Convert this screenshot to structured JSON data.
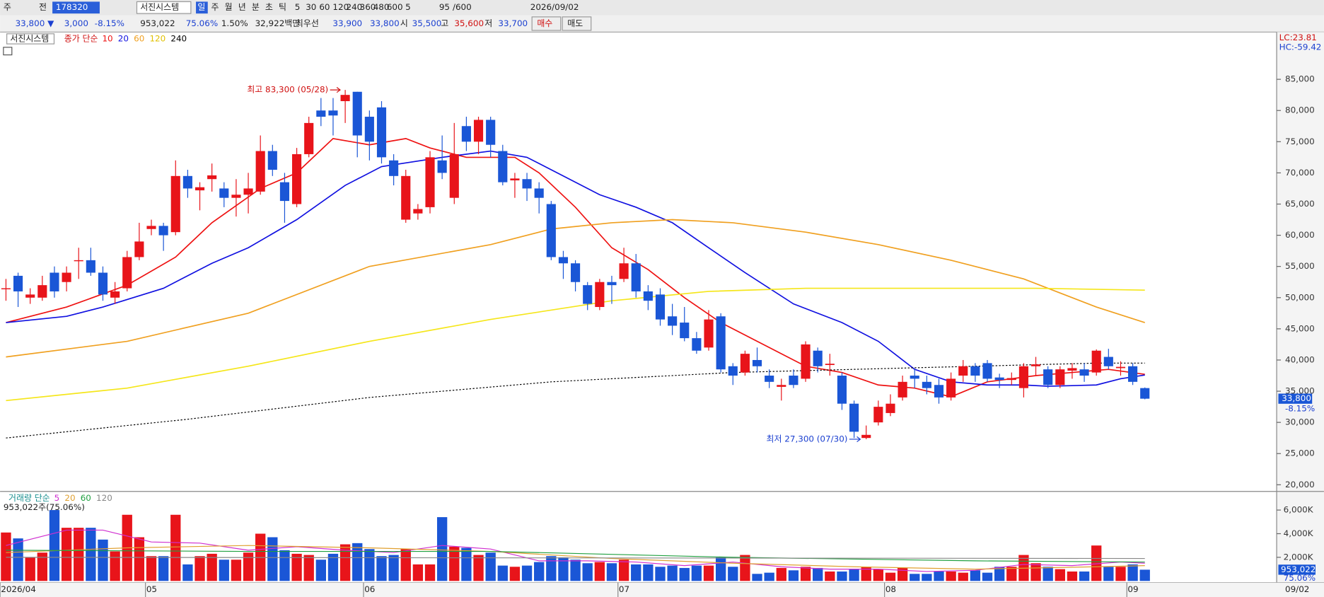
{
  "toolbar": {
    "row1": [
      "주",
      "전",
      "178320",
      "서진시스템",
      "일",
      "주",
      "월",
      "년",
      "분",
      "초",
      "틱",
      "5",
      "30",
      "60",
      "120",
      "240",
      "360",
      "480",
      "600",
      "5",
      "95",
      "/600",
      "2026/09/02"
    ],
    "row2": [
      "33,800 ▼",
      "3,000",
      "-8.15%",
      "953,022",
      "75.06%",
      "1.50%",
      "32,922백만",
      "최우선",
      "33,900",
      "33,800",
      "시",
      "35,500",
      "고",
      "35,600",
      "저",
      "33,700",
      "매수",
      "매도"
    ]
  },
  "chart_data": [
    {
      "type": "candlestick",
      "legend_title": "서진시스템",
      "ma_label": "종가 단순",
      "lc_label": "LC:23.81",
      "hc_label": "HC:-59.42",
      "max_label": "최고 83,300 (05/28)",
      "min_label": "최저 27,300 (07/30)",
      "last_label": "33,800",
      "last_change": "-8.15%",
      "date_label": "09/02",
      "categories": [
        "2026/04",
        null,
        null,
        null,
        null,
        null,
        null,
        null,
        null,
        null,
        null,
        null,
        "05",
        null,
        null,
        null,
        null,
        null,
        null,
        null,
        null,
        null,
        null,
        null,
        null,
        null,
        null,
        null,
        null,
        null,
        "06",
        null,
        null,
        null,
        null,
        null,
        null,
        null,
        null,
        null,
        null,
        null,
        null,
        null,
        null,
        null,
        null,
        null,
        null,
        null,
        null,
        "07",
        null,
        null,
        null,
        null,
        null,
        null,
        null,
        null,
        null,
        null,
        null,
        null,
        null,
        null,
        null,
        null,
        null,
        null,
        null,
        null,
        null,
        "08",
        null,
        null,
        null,
        null,
        null,
        null,
        null,
        null,
        null,
        null,
        null,
        null,
        null,
        null,
        null,
        null,
        null,
        null,
        null,
        "09",
        null
      ],
      "open": [
        51500,
        53500,
        50000,
        50000,
        54000,
        52500,
        56000,
        56000,
        54000,
        50000,
        51500,
        56500,
        61000,
        61500,
        60500,
        69500,
        67200,
        69000,
        67500,
        66000,
        66500,
        67000,
        73500,
        68500,
        65000,
        73000,
        80000,
        80000,
        81500,
        83000,
        79000,
        80500,
        72000,
        62500,
        63500,
        64500,
        72000,
        66000,
        77500,
        75000,
        78500,
        73500,
        68800,
        69000,
        67500,
        65000,
        56500,
        55500,
        52000,
        48500,
        52500,
        53000,
        55500,
        51000,
        50500,
        47000,
        46000,
        43500,
        42000,
        47000,
        39000,
        38000,
        40000,
        37500,
        35700,
        37500,
        37000,
        41500,
        39200,
        37500,
        33000,
        27500,
        30000,
        31500,
        34000,
        37500,
        36500,
        36000,
        34000,
        37500,
        39000,
        39500,
        37200,
        36800,
        35500,
        39000,
        38500,
        36000,
        38300,
        38500,
        38000,
        40500,
        38700,
        39000,
        35500
      ],
      "high": [
        53000,
        54000,
        51500,
        53500,
        55000,
        55000,
        58000,
        58000,
        55000,
        52500,
        57500,
        62000,
        62500,
        62000,
        72000,
        70500,
        68500,
        71500,
        68500,
        69000,
        70000,
        76000,
        74500,
        70000,
        74000,
        79000,
        82000,
        82000,
        83300,
        83000,
        80000,
        81500,
        73000,
        70500,
        65000,
        73500,
        76000,
        78000,
        79000,
        79000,
        79000,
        74500,
        70000,
        70000,
        68500,
        65500,
        57500,
        56000,
        52500,
        53000,
        53500,
        58000,
        57000,
        52000,
        51500,
        49000,
        48500,
        44500,
        48000,
        47500,
        39500,
        41500,
        42000,
        38500,
        37000,
        38500,
        43000,
        42000,
        41000,
        38000,
        33500,
        29500,
        33500,
        34500,
        37500,
        38500,
        37500,
        37000,
        38000,
        40000,
        39500,
        40000,
        37800,
        38000,
        39500,
        40500,
        39000,
        39000,
        39500,
        39500,
        41700,
        41800,
        39800,
        39500,
        35600
      ],
      "low": [
        49500,
        48500,
        49000,
        49500,
        50000,
        51000,
        53000,
        53500,
        49500,
        49000,
        51000,
        56000,
        60000,
        57500,
        60000,
        66000,
        64000,
        67000,
        64500,
        63000,
        63500,
        66500,
        69500,
        62000,
        64500,
        72500,
        77500,
        76000,
        78000,
        72500,
        72000,
        71500,
        68000,
        62000,
        62500,
        63500,
        69000,
        65000,
        73500,
        73000,
        72500,
        68000,
        66000,
        65500,
        63500,
        56000,
        53000,
        51000,
        48000,
        48000,
        49000,
        52500,
        50000,
        48000,
        45500,
        44000,
        43000,
        41000,
        41500,
        38000,
        36000,
        37500,
        38000,
        35500,
        33500,
        35500,
        36500,
        38000,
        37500,
        32000,
        27500,
        27300,
        29500,
        31000,
        33500,
        35500,
        34500,
        33000,
        33500,
        36500,
        36500,
        36500,
        35500,
        36000,
        34000,
        37500,
        35500,
        35500,
        37000,
        36500,
        37500,
        38500,
        37500,
        36000,
        33700
      ],
      "close": [
        51500,
        51000,
        50500,
        52000,
        51000,
        54000,
        56000,
        54000,
        50500,
        51000,
        56500,
        59000,
        61500,
        60000,
        69500,
        67500,
        67700,
        69600,
        66000,
        66500,
        67500,
        73500,
        70500,
        65500,
        73000,
        78000,
        79000,
        79200,
        82500,
        76000,
        75000,
        72500,
        69500,
        69500,
        64200,
        72500,
        70000,
        73000,
        75000,
        78500,
        74500,
        68500,
        69100,
        67500,
        66000,
        56500,
        55500,
        52500,
        49000,
        52500,
        52000,
        55500,
        51000,
        49500,
        46500,
        45500,
        43500,
        41500,
        46500,
        38500,
        37500,
        41000,
        39000,
        36500,
        36000,
        36000,
        42500,
        39000,
        39400,
        33000,
        28500,
        28000,
        32500,
        33000,
        36500,
        37000,
        35500,
        34000,
        37000,
        39000,
        37500,
        37000,
        36800,
        37100,
        39000,
        39300,
        36000,
        38500,
        38700,
        37500,
        41500,
        39000,
        38900,
        36500,
        33800
      ],
      "up_color": "#e8141a",
      "down_color": "#1a56d6",
      "series": [
        {
          "name": "10",
          "color": "#ee1111",
          "x": [
            0,
            5,
            10,
            14,
            17,
            21,
            24,
            27,
            30,
            33,
            35,
            38,
            42,
            44,
            47,
            50,
            53,
            56,
            59,
            62,
            66,
            69,
            72,
            75,
            78,
            81,
            85,
            88,
            91,
            94
          ],
          "values": [
            46000,
            48500,
            52000,
            56500,
            62000,
            67500,
            70000,
            75500,
            74500,
            75500,
            74000,
            72500,
            72500,
            70000,
            64500,
            58000,
            54500,
            50000,
            46000,
            43000,
            39000,
            38000,
            36000,
            35500,
            34100,
            36500,
            37500,
            38000,
            38500,
            37700
          ]
        },
        {
          "name": "20",
          "color": "#1010e0",
          "x": [
            0,
            5,
            8,
            13,
            17,
            20,
            24,
            28,
            31,
            36,
            40,
            43,
            45,
            49,
            52,
            55,
            58,
            61,
            65,
            69,
            72,
            75,
            78,
            81,
            84,
            86,
            90,
            92,
            94
          ],
          "values": [
            46000,
            47000,
            48500,
            51500,
            55500,
            58000,
            62500,
            68000,
            71000,
            72500,
            73500,
            72500,
            70500,
            66500,
            64500,
            62000,
            58000,
            54000,
            49000,
            46000,
            43000,
            38500,
            36500,
            36000,
            36000,
            35800,
            36000,
            37000,
            37600
          ]
        },
        {
          "name": "60",
          "color": "#f0a020",
          "x": [
            0,
            10,
            20,
            30,
            40,
            45,
            50,
            55,
            60,
            66,
            72,
            78,
            84,
            90,
            94
          ],
          "values": [
            40500,
            43000,
            47500,
            55000,
            58500,
            61000,
            62000,
            62500,
            62000,
            60500,
            58500,
            56000,
            53000,
            48500,
            46000
          ]
        },
        {
          "name": "120",
          "color": "#f5e61a",
          "x": [
            0,
            10,
            20,
            30,
            40,
            50,
            58,
            66,
            75,
            85,
            94
          ],
          "values": [
            33500,
            35500,
            39000,
            43000,
            46500,
            49500,
            51000,
            51500,
            51500,
            51500,
            51200
          ]
        },
        {
          "name": "240",
          "color": "#000000",
          "dashed": true,
          "x": [
            0,
            15,
            30,
            45,
            60,
            70,
            80,
            90,
            94
          ],
          "values": [
            27500,
            30500,
            34000,
            36500,
            38000,
            38500,
            39000,
            39500,
            39500
          ]
        }
      ],
      "ylim": [
        19200,
        92300
      ],
      "yticks": [
        {
          "value": 20000,
          "label": "20,000"
        },
        {
          "value": 25000,
          "label": "25,000"
        },
        {
          "value": 30000,
          "label": "30,000"
        },
        {
          "value": 35000,
          "label": "35,000"
        },
        {
          "value": 40000,
          "label": "40,000"
        },
        {
          "value": 45000,
          "label": "45,000"
        },
        {
          "value": 50000,
          "label": "50,000"
        },
        {
          "value": 55000,
          "label": "55,000"
        },
        {
          "value": 60000,
          "label": "60,000"
        },
        {
          "value": 65000,
          "label": "65,000"
        },
        {
          "value": 70000,
          "label": "70,000"
        },
        {
          "value": 75000,
          "label": "75,000"
        },
        {
          "value": 80000,
          "label": "80,000"
        },
        {
          "value": 85000,
          "label": "85,000"
        }
      ]
    },
    {
      "type": "bar",
      "legend_title": "거래량 단순",
      "info_label": "953,022주(75.06%)",
      "last_label": "953,022",
      "last_ratio": "75.06%",
      "values": [
        4100000,
        3600000,
        2000000,
        2400000,
        6000000,
        4500000,
        4500000,
        4500000,
        3500000,
        2500000,
        5600000,
        3700000,
        2100000,
        2100000,
        5600000,
        1400000,
        2100000,
        2300000,
        1800000,
        1800000,
        2400000,
        4000000,
        3700000,
        2600000,
        2300000,
        2200000,
        1800000,
        2300000,
        3100000,
        3200000,
        2700000,
        2100000,
        2200000,
        2700000,
        1400000,
        1400000,
        5400000,
        2900000,
        2800000,
        2200000,
        2400000,
        1300000,
        1200000,
        1300000,
        1600000,
        2100000,
        2000000,
        1800000,
        1500000,
        1600000,
        1500000,
        1800000,
        1400000,
        1400000,
        1200000,
        1300000,
        1100000,
        1300000,
        1300000,
        2000000,
        1200000,
        2200000,
        600000,
        700000,
        1100000,
        900000,
        1200000,
        1100000,
        800000,
        800000,
        1000000,
        1200000,
        1000000,
        700000,
        1100000,
        600000,
        600000,
        800000,
        800000,
        700000,
        900000,
        700000,
        1200000,
        1200000,
        2200000,
        1500000,
        1200000,
        1000000,
        800000,
        800000,
        3000000,
        1200000,
        1200000,
        1400000,
        953022
      ],
      "series": [
        {
          "name": "5",
          "color": "#d030d0",
          "x": [
            0,
            5,
            8,
            12,
            16,
            20,
            24,
            28,
            32,
            36,
            40,
            44,
            48,
            52,
            56,
            60,
            64,
            68,
            72,
            76,
            80,
            84,
            88,
            92,
            94
          ],
          "values": [
            3000000,
            4300000,
            4300000,
            3300000,
            3200000,
            2600000,
            2900000,
            2600000,
            2400000,
            3000000,
            2700000,
            1700000,
            1700000,
            1600000,
            1300000,
            1600000,
            1200000,
            1000000,
            1000000,
            800000,
            900000,
            1400000,
            1300000,
            1600000,
            1500000
          ]
        },
        {
          "name": "20",
          "color": "#e0a030",
          "x": [
            0,
            10,
            20,
            30,
            40,
            50,
            60,
            70,
            80,
            90,
            94
          ],
          "values": [
            2400000,
            2800000,
            3000000,
            2800000,
            2500000,
            1900000,
            1500000,
            1200000,
            1000000,
            1200000,
            1300000
          ]
        },
        {
          "name": "60",
          "color": "#20a040",
          "x": [
            0,
            20,
            40,
            60,
            80,
            94
          ],
          "values": [
            2600000,
            2500000,
            2500000,
            2000000,
            1700000,
            1600000
          ]
        },
        {
          "name": "120",
          "color": "#888888",
          "x": [
            0,
            94
          ],
          "values": [
            2000000,
            1900000
          ]
        }
      ],
      "ylim": [
        0,
        7360000
      ],
      "yticks": [
        {
          "value": 2000000,
          "label": "2,000K"
        },
        {
          "value": 4000000,
          "label": "4,000K"
        },
        {
          "value": 6000000,
          "label": "6,000K"
        }
      ]
    }
  ]
}
